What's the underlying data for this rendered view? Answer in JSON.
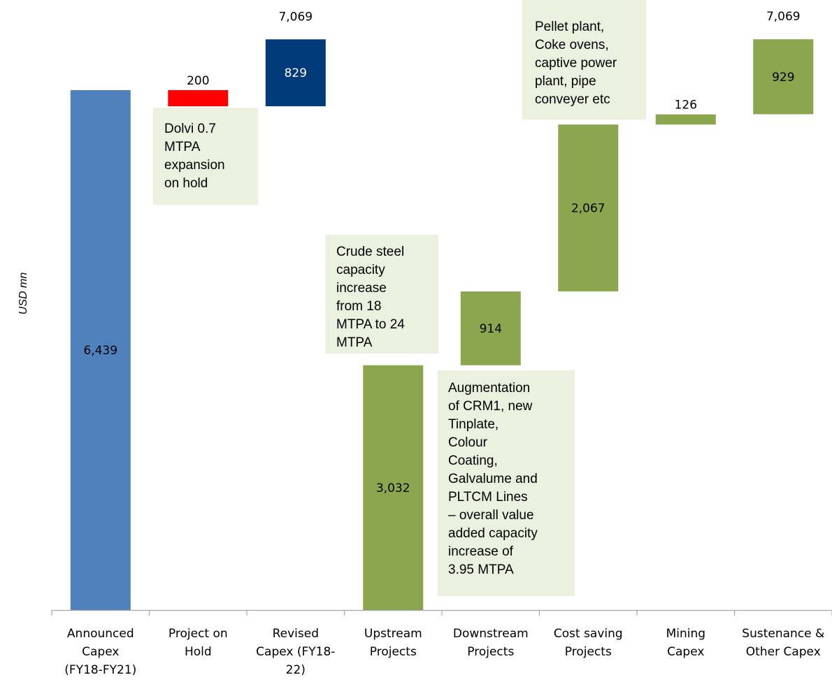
{
  "chart_data": {
    "type": "bar",
    "subtype": "waterfall",
    "ylabel": "USD mn",
    "xlabel": "",
    "title": "",
    "ylim": [
      0,
      7800
    ],
    "grid": false,
    "categories": [
      [
        "Announced",
        "Capex",
        "(FY18-FY21)"
      ],
      [
        "Project on",
        "Hold"
      ],
      [
        "Revised",
        "Capex (FY18-",
        "22)"
      ],
      [
        "Upstream",
        "Projects"
      ],
      [
        "Downstream",
        "Projects"
      ],
      [
        "Cost saving",
        "Projects"
      ],
      [
        "Mining",
        "Capex"
      ],
      [
        "Sustenance &",
        "Other Capex"
      ]
    ],
    "bars": [
      {
        "value": 6439,
        "label": "6,439",
        "base": 0,
        "color": "#4f81bd",
        "label_pos": "inside",
        "label_color": "#000000"
      },
      {
        "value": 200,
        "label": "200",
        "base": 6239,
        "color": "#ff0000",
        "label_pos": "above",
        "label_color": "#000000"
      },
      {
        "value": 829,
        "label": "829",
        "base": 6239,
        "color": "#003a78",
        "label_pos": "inside",
        "label_color": "#ffffff",
        "total_label": "7,069"
      },
      {
        "value": 3032,
        "label": "3,032",
        "base": 0,
        "color": "#8aa64f",
        "label_pos": "inside",
        "label_color": "#000000"
      },
      {
        "value": 914,
        "label": "914",
        "base": 3032,
        "color": "#8aa64f",
        "label_pos": "inside",
        "label_color": "#000000"
      },
      {
        "value": 2067,
        "label": "2,067",
        "base": 3946,
        "color": "#8aa64f",
        "label_pos": "inside",
        "label_color": "#000000"
      },
      {
        "value": 126,
        "label": "126",
        "base": 6013,
        "color": "#8aa64f",
        "label_pos": "above",
        "label_color": "#000000"
      },
      {
        "value": 929,
        "label": "929",
        "base": 6140,
        "color": "#8aa64f",
        "label_pos": "inside",
        "label_color": "#000000",
        "total_label": "7,069"
      }
    ],
    "annotations": [
      {
        "for": 1,
        "lines": [
          "Dolvi 0.7",
          "MTPA",
          "expansion",
          "on hold"
        ]
      },
      {
        "for": 3,
        "lines": [
          "Crude steel",
          "capacity",
          "increase",
          "from 18",
          "MTPA to 24",
          "MTPA"
        ]
      },
      {
        "for": 4,
        "lines": [
          "Augmentation",
          "of CRM1, new",
          "Tinplate,",
          "Colour",
          "Coating,",
          "Galvalume and",
          "PLTCM Lines",
          "– overall value",
          "added capacity",
          "increase of",
          "3.95 MTPA"
        ]
      },
      {
        "for": 5,
        "lines": [
          "Pellet plant,",
          "Coke ovens,",
          "captive power",
          "plant, pipe",
          "conveyer etc"
        ]
      }
    ],
    "colors": {
      "note_bg": "#ebf0df",
      "axis": "#a6a6a6"
    }
  }
}
